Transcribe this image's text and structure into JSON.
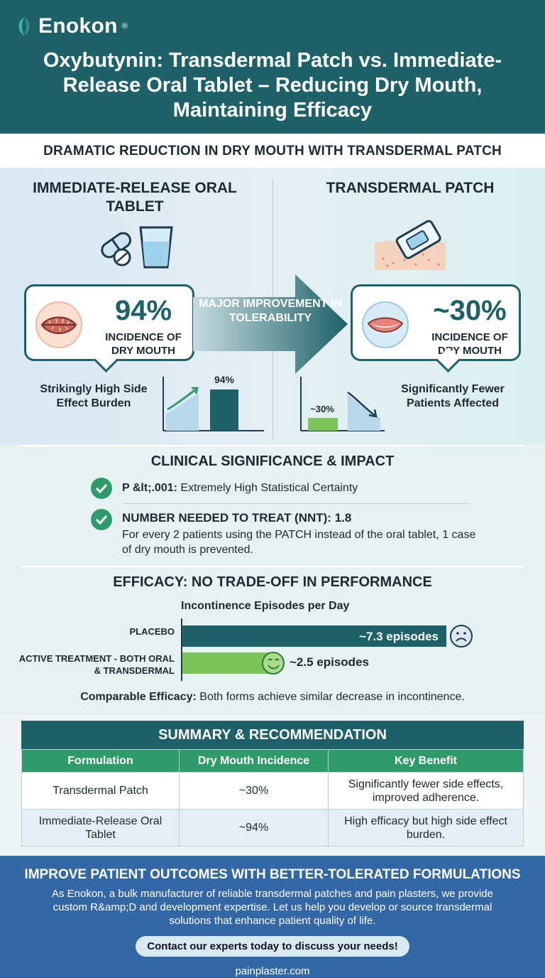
{
  "brand": {
    "name": "Enokon",
    "reg": "®"
  },
  "header": {
    "title": "Oxybutynin: Transdermal Patch vs. Immediate-Release Oral Tablet – Reducing Dry Mouth, Maintaining Efficacy"
  },
  "subhead": "DRAMATIC REDUCTION IN DRY MOUTH WITH TRANSDERMAL PATCH",
  "left": {
    "title": "IMMEDIATE-RELEASE ORAL TABLET",
    "pct": "94%",
    "pct_label": "INCIDENCE OF DRY MOUTH",
    "note": "Strikingly High Side Effect Burden",
    "bar_label": "94%",
    "value": 94
  },
  "arrow": {
    "text": "MAJOR IMPROVEMENT IN TOLERABILITY"
  },
  "right": {
    "title": "TRANSDERMAL PATCH",
    "pct": "~30%",
    "pct_label": "INCIDENCE OF DRY MOUTH",
    "note": "Significantly Fewer Patients Affected",
    "bar_label": "~30%",
    "value": 30
  },
  "clinical": {
    "title": "CLINICAL SIGNIFICANCE & IMPACT",
    "p_label": "P &lt;.001:",
    "p_text": "Extremely High Statistical Certainty",
    "nnt_label": "NUMBER NEEDED TO TREAT (NNT): 1.8",
    "nnt_text": "For every 2 patients using the PATCH instead of the oral tablet, 1 case of dry mouth is prevented."
  },
  "efficacy": {
    "title": "EFFICACY: NO TRADE-OFF IN PERFORMANCE",
    "chart_title": "Incontinence Episodes per Day",
    "placebo_label": "PLACEBO",
    "placebo_value_label": "~7.3 episodes",
    "active_label": "ACTIVE TREATMENT - BOTH ORAL & TRANSDERMAL",
    "active_value_label": "~2.5 episodes",
    "note_bold": "Comparable Efficacy:",
    "note_text": "Both forms achieve similar decrease in incontinence."
  },
  "chart_data": {
    "type": "bar",
    "title": "Incontinence Episodes per Day",
    "categories": [
      "PLACEBO",
      "ACTIVE TREATMENT - BOTH ORAL & TRANSDERMAL"
    ],
    "values": [
      7.3,
      2.5
    ]
  },
  "summary": {
    "title": "SUMMARY & RECOMMENDATION",
    "headers": [
      "Formulation",
      "Dry Mouth Incidence",
      "Key Benefit"
    ],
    "rows": [
      [
        "Transdermal Patch",
        "~30%",
        "Significantly fewer side effects, improved adherence."
      ],
      [
        "Immediate-Release Oral Tablet",
        "~94%",
        "High efficacy but high side effect burden."
      ]
    ]
  },
  "footer": {
    "title": "IMPROVE PATIENT OUTCOMES WITH BETTER-TOLERATED FORMULATIONS",
    "body": "As Enokon, a bulk manufacturer of reliable transdermal patches and pain plasters, we provide custom R&amp;D and development expertise. Let us help you develop or source transdermal solutions that enhance patient quality of life.",
    "cta": "Contact our experts today to discuss your needs!",
    "site": "painplaster.com"
  },
  "colors": {
    "teal": "#1f6168",
    "green": "#2f9b6b",
    "lightgreen": "#7cc35a",
    "blue": "#3367a6"
  }
}
